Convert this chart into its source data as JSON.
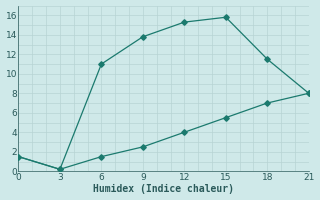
{
  "line1_x": [
    0,
    3,
    6,
    9,
    12,
    15,
    18,
    21
  ],
  "line1_y": [
    1.5,
    0.2,
    11.0,
    13.8,
    15.3,
    15.8,
    11.5,
    8.0
  ],
  "line2_x": [
    0,
    3,
    6,
    9,
    12,
    15,
    18,
    21
  ],
  "line2_y": [
    1.5,
    0.2,
    1.5,
    2.5,
    4.0,
    5.5,
    7.0,
    8.0
  ],
  "line_color": "#1b7a6e",
  "bg_color": "#cfe9e9",
  "grid_color": "#b8d4d4",
  "xlabel": "Humidex (Indice chaleur)",
  "xlim": [
    0,
    21
  ],
  "ylim": [
    0,
    17
  ],
  "xticks": [
    0,
    3,
    6,
    9,
    12,
    15,
    18,
    21
  ],
  "yticks": [
    0,
    2,
    4,
    6,
    8,
    10,
    12,
    14,
    16
  ],
  "tick_color": "#2a5a5a",
  "marker": "D",
  "markersize": 2.8,
  "linewidth": 0.9
}
